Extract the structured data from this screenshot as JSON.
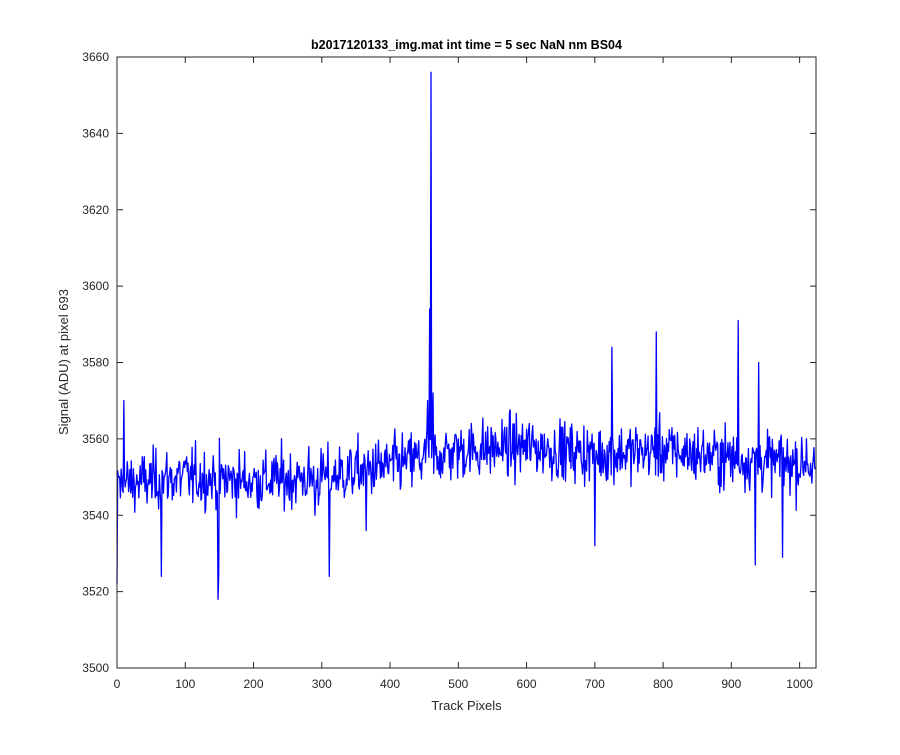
{
  "chart_data": {
    "type": "line",
    "title": "b2017120133_img.mat int time = 5 sec  NaN nm BS04",
    "xlabel": "Track Pixels",
    "ylabel": "Signal (ADU) at pixel 693",
    "xlim": [
      0,
      1024
    ],
    "ylim": [
      3500,
      3660
    ],
    "xticks": [
      0,
      100,
      200,
      300,
      400,
      500,
      600,
      700,
      800,
      900,
      1000
    ],
    "yticks": [
      3500,
      3520,
      3540,
      3560,
      3580,
      3600,
      3620,
      3640,
      3660
    ],
    "xtick_labels": [
      "0",
      "100",
      "200",
      "300",
      "400",
      "500",
      "600",
      "700",
      "800",
      "900",
      "1000"
    ],
    "ytick_labels": [
      "3500",
      "3520",
      "3540",
      "3560",
      "3580",
      "3600",
      "3620",
      "3640",
      "3660"
    ],
    "grid": false,
    "line_color": "#0000ff",
    "n_points": 1024,
    "baseline_trend": [
      [
        0,
        3548
      ],
      [
        100,
        3550
      ],
      [
        200,
        3549
      ],
      [
        300,
        3550
      ],
      [
        400,
        3553
      ],
      [
        500,
        3557
      ],
      [
        600,
        3558
      ],
      [
        700,
        3556
      ],
      [
        800,
        3557
      ],
      [
        900,
        3555
      ],
      [
        1024,
        3553
      ]
    ],
    "noise_amplitude": 7,
    "x": [
      0,
      2,
      10,
      65,
      148,
      149,
      290,
      311,
      365,
      455,
      458,
      460,
      463,
      700,
      725,
      790,
      910,
      935,
      940,
      975,
      1010,
      1023
    ],
    "y": [
      3522,
      3550,
      3570,
      3524,
      3518,
      3524,
      3540,
      3524,
      3536,
      3570,
      3594,
      3656,
      3572,
      3532,
      3584,
      3588,
      3591,
      3527,
      3580,
      3529,
      3560,
      3552
    ]
  }
}
